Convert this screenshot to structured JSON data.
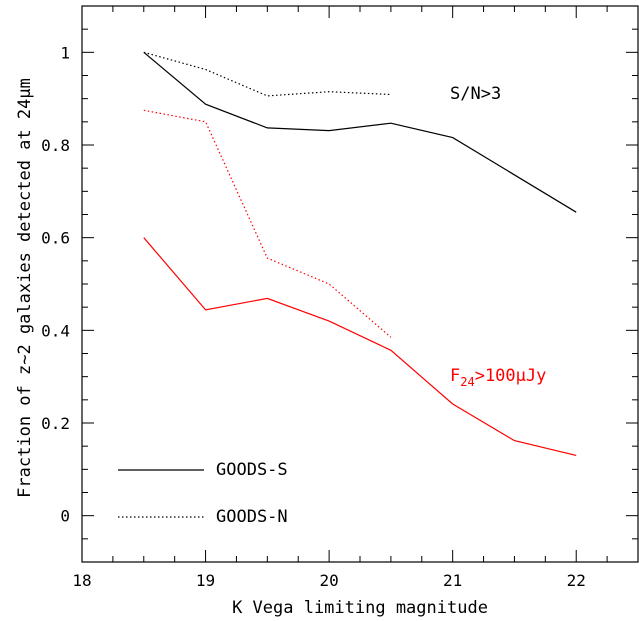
{
  "chart_data": {
    "type": "line",
    "xlabel": "K Vega limiting magnitude",
    "ylabel": "Fraction of z~2 galaxies detected at 24μm",
    "xlim": [
      18,
      22.5
    ],
    "ylim": [
      -0.1,
      1.1
    ],
    "xticks": [
      "18",
      "19",
      "20",
      "21",
      "22"
    ],
    "yticks": [
      "0",
      "0.2",
      "0.4",
      "0.6",
      "0.8",
      "1"
    ],
    "grid": false,
    "series": [
      {
        "name": "GOODS-S",
        "group": "S/N>3",
        "color": "#000000",
        "style": "solid",
        "x": [
          18.5,
          19,
          19.5,
          20,
          20.5,
          21,
          22
        ],
        "y": [
          1.0,
          0.888,
          0.837,
          0.831,
          0.847,
          0.816,
          0.655
        ]
      },
      {
        "name": "GOODS-N",
        "group": "S/N>3",
        "color": "#000000",
        "style": "dotted",
        "x": [
          18.5,
          19,
          19.5,
          20,
          20.5
        ],
        "y": [
          1.0,
          0.963,
          0.906,
          0.915,
          0.909
        ]
      },
      {
        "name": "GOODS-S",
        "group": "F24>100μJy",
        "color": "#ff0000",
        "style": "solid",
        "x": [
          18.5,
          19,
          19.5,
          20,
          20.5,
          21,
          21.5,
          22
        ],
        "y": [
          0.6,
          0.444,
          0.469,
          0.42,
          0.357,
          0.241,
          0.162,
          0.13
        ]
      },
      {
        "name": "GOODS-N",
        "group": "F24>100μJy",
        "color": "#ff0000",
        "style": "dotted",
        "x": [
          18.5,
          19,
          19.5,
          20,
          20.5
        ],
        "y": [
          0.875,
          0.85,
          0.556,
          0.5,
          0.385
        ]
      }
    ],
    "annotations": {
      "sn": {
        "text": "S/N>3",
        "color": "#000000"
      },
      "flux": {
        "base": "F",
        "sub": "24",
        "rest": ">100μJy",
        "color": "#ff0000"
      }
    },
    "legend": [
      {
        "label": "GOODS-S",
        "style": "solid"
      },
      {
        "label": "GOODS-N",
        "style": "dotted"
      }
    ]
  }
}
